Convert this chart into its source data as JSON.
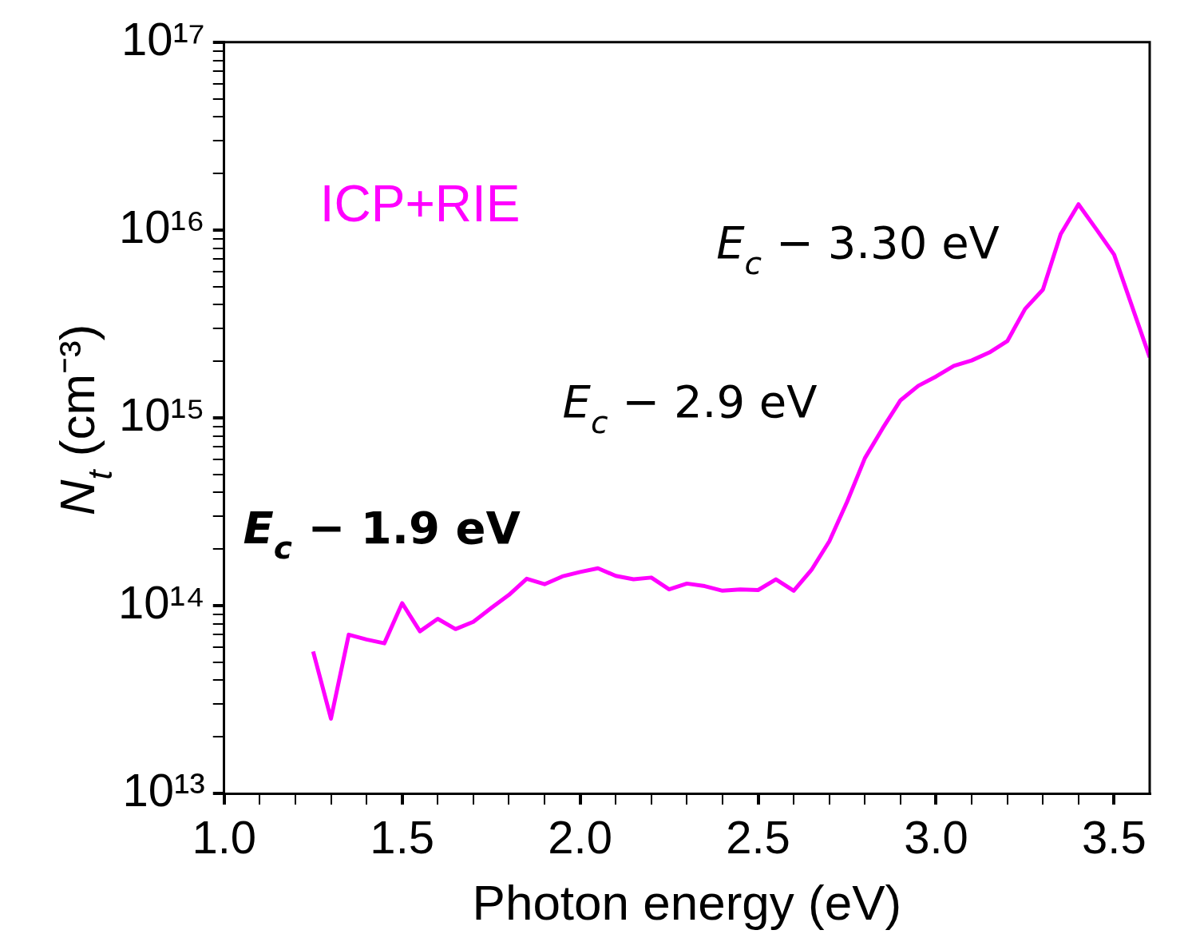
{
  "chart_data": {
    "type": "line",
    "xlabel": "Photon energy (eV)",
    "ylabel": "N$_{t}$ (cm⁻³)",
    "log": "y",
    "marker": "none",
    "legend": false,
    "xlim": [
      1.0,
      3.6
    ],
    "ylim": [
      10000000000000.0,
      1e+17
    ],
    "xticks": [
      {
        "value": 1.0,
        "label": "1.0"
      },
      {
        "value": 1.1,
        "label": null
      },
      {
        "value": 1.2,
        "label": null
      },
      {
        "value": 1.3,
        "label": null
      },
      {
        "value": 1.4,
        "label": null
      },
      {
        "value": 1.5,
        "label": "1.5"
      },
      {
        "value": 1.6,
        "label": null
      },
      {
        "value": 1.7,
        "label": null
      },
      {
        "value": 1.8,
        "label": null
      },
      {
        "value": 1.9,
        "label": null
      },
      {
        "value": 2.0,
        "label": "2.0"
      },
      {
        "value": 2.1,
        "label": null
      },
      {
        "value": 2.2,
        "label": null
      },
      {
        "value": 2.3,
        "label": null
      },
      {
        "value": 2.4,
        "label": null
      },
      {
        "value": 2.5,
        "label": "2.5"
      },
      {
        "value": 2.6,
        "label": null
      },
      {
        "value": 2.7,
        "label": null
      },
      {
        "value": 2.8,
        "label": null
      },
      {
        "value": 2.9,
        "label": null
      },
      {
        "value": 3.0,
        "label": "3.0"
      },
      {
        "value": 3.1,
        "label": null
      },
      {
        "value": 3.2,
        "label": null
      },
      {
        "value": 3.3,
        "label": null
      },
      {
        "value": 3.4,
        "label": null
      },
      {
        "value": 3.5,
        "label": "3.5"
      }
    ],
    "yticks": [
      {
        "value": 10000000000000.0,
        "label": "10¹³"
      },
      {
        "value": 20000000000000.0,
        "label": null
      },
      {
        "value": 30000000000000.0,
        "label": null
      },
      {
        "value": 40000000000000.0,
        "label": null
      },
      {
        "value": 50000000000000.0,
        "label": null
      },
      {
        "value": 60000000000000.0,
        "label": null
      },
      {
        "value": 70000000000000.0,
        "label": null
      },
      {
        "value": 80000000000000.0,
        "label": null
      },
      {
        "value": 90000000000000.0,
        "label": null
      },
      {
        "value": 100000000000000.0,
        "label": "10¹⁴"
      },
      {
        "value": 200000000000000.0,
        "label": null
      },
      {
        "value": 300000000000000.0,
        "label": null
      },
      {
        "value": 400000000000000.0,
        "label": null
      },
      {
        "value": 500000000000000.0,
        "label": null
      },
      {
        "value": 600000000000000.0,
        "label": null
      },
      {
        "value": 700000000000000.0,
        "label": null
      },
      {
        "value": 800000000000000.0,
        "label": null
      },
      {
        "value": 900000000000000.0,
        "label": null
      },
      {
        "value": 1000000000000000.0,
        "label": "10¹⁵"
      },
      {
        "value": 2000000000000000.0,
        "label": null
      },
      {
        "value": 3000000000000000.0,
        "label": null
      },
      {
        "value": 4000000000000000.0,
        "label": null
      },
      {
        "value": 5000000000000000.0,
        "label": null
      },
      {
        "value": 6000000000000000.0,
        "label": null
      },
      {
        "value": 7000000000000000.0,
        "label": null
      },
      {
        "value": 8000000000000000.0,
        "label": null
      },
      {
        "value": 9000000000000000.0,
        "label": null
      },
      {
        "value": 1e+16,
        "label": "10¹⁶"
      },
      {
        "value": 2e+16,
        "label": null
      },
      {
        "value": 3e+16,
        "label": null
      },
      {
        "value": 4e+16,
        "label": null
      },
      {
        "value": 5e+16,
        "label": null
      },
      {
        "value": 6e+16,
        "label": null
      },
      {
        "value": 7e+16,
        "label": null
      },
      {
        "value": 8e+16,
        "label": null
      },
      {
        "value": 9e+16,
        "label": null
      },
      {
        "value": 1e+17,
        "label": "10¹⁷"
      }
    ],
    "annotations": [
      "E$_{c}$ − 3.30 eV",
      "E$_{c}$ − 2.9 eV",
      "E$_{c}$ − 1.9 eV"
    ],
    "series": [
      {
        "name": "ICP+RIE",
        "color": "#ff00ff",
        "x": [
          1.25,
          1.3,
          1.35,
          1.4,
          1.45,
          1.5,
          1.55,
          1.6,
          1.65,
          1.7,
          1.75,
          1.8,
          1.85,
          1.9,
          1.95,
          2.0,
          2.05,
          2.1,
          2.15,
          2.2,
          2.25,
          2.3,
          2.35,
          2.4,
          2.45,
          2.5,
          2.55,
          2.6,
          2.65,
          2.7,
          2.75,
          2.8,
          2.85,
          2.9,
          2.95,
          3.0,
          3.05,
          3.1,
          3.15,
          3.2,
          3.25,
          3.3,
          3.35,
          3.4,
          3.45,
          3.5,
          3.6
        ],
        "values": [
          57000000000000.0,
          25000000000000.0,
          70000000000000.0,
          66000000000000.0,
          63000000000000.0,
          103000000000000.0,
          73000000000000.0,
          85000000000000.0,
          75000000000000.0,
          82000000000000.0,
          97000000000000.0,
          114000000000000.0,
          139000000000000.0,
          130000000000000.0,
          143000000000000.0,
          151000000000000.0,
          158000000000000.0,
          144000000000000.0,
          138000000000000.0,
          141000000000000.0,
          122000000000000.0,
          131000000000000.0,
          127000000000000.0,
          120000000000000.0,
          122000000000000.0,
          121000000000000.0,
          138000000000000.0,
          120000000000000.0,
          155000000000000.0,
          220000000000000.0,
          357000000000000.0,
          610000000000000.0,
          880000000000000.0,
          1240000000000000.0,
          1480000000000000.0,
          1660000000000000.0,
          1890000000000000.0,
          2020000000000000.0,
          2230000000000000.0,
          2560000000000000.0,
          3800000000000000.0,
          4810000000000000.0,
          9500000000000000.0,
          1.37e+16,
          1.01e+16,
          7400000000000000.0,
          2100000000000000.0
        ]
      }
    ]
  }
}
